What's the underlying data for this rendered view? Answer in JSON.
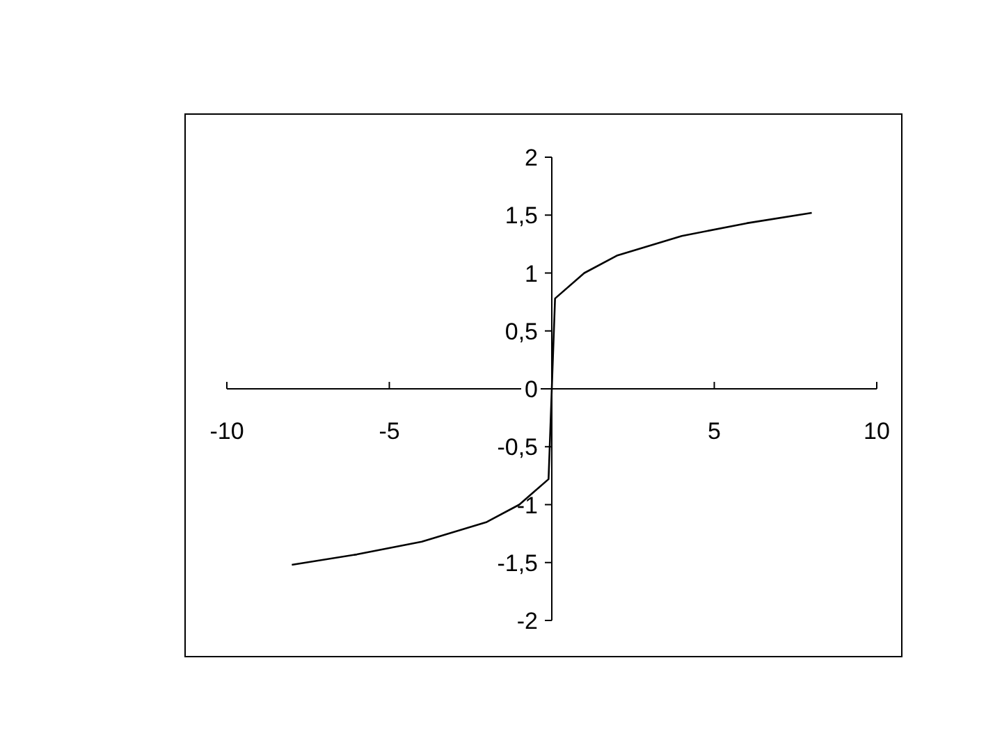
{
  "chart_data": {
    "type": "line",
    "x": [
      -8,
      -6,
      -4,
      -2,
      -1,
      -0.1,
      0,
      0.1,
      1,
      2,
      4,
      6,
      8
    ],
    "values": [
      -1.52,
      -1.43,
      -1.32,
      -1.15,
      -1,
      -0.78,
      0,
      0.78,
      1,
      1.15,
      1.32,
      1.43,
      1.52
    ],
    "color": "#000000",
    "xlim": [
      -10,
      10
    ],
    "ylim": [
      -2,
      2
    ],
    "xticks": [
      -10,
      -5,
      {
        "value": 0,
        "label": null
      },
      5,
      10
    ],
    "yticks": [
      {
        "value": -2,
        "label": "-2"
      },
      {
        "value": -1.5,
        "label": "-1,5"
      },
      {
        "value": -1,
        "label": "-1"
      },
      {
        "value": -0.5,
        "label": "-0,5"
      },
      0,
      {
        "value": 0.5,
        "label": "0,5"
      },
      1,
      {
        "value": 1.5,
        "label": "1,5"
      },
      2
    ],
    "grid": false,
    "marker": "none",
    "line_style": "solid"
  }
}
